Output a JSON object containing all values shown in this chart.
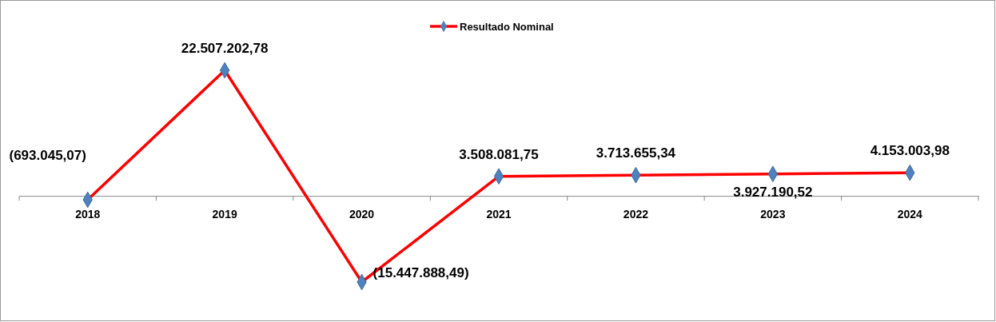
{
  "chart_data": {
    "type": "line",
    "categories": [
      "2018",
      "2019",
      "2020",
      "2021",
      "2022",
      "2023",
      "2024"
    ],
    "series": [
      {
        "name": "Resultado Nominal",
        "color": "#ff0000",
        "values": [
          -693045.07,
          22507202.78,
          -15447888.49,
          3508081.75,
          3713655.34,
          3927190.52,
          4153003.98
        ],
        "value_labels": [
          "(693.045,07)",
          "22.507.202,78",
          "(15.447.888,49)",
          "3.508.081,75",
          "3.713.655,34",
          "3.927.190,52",
          "4.153.003,98"
        ]
      }
    ],
    "marker": "diamond",
    "legend": "top",
    "grid": false
  }
}
